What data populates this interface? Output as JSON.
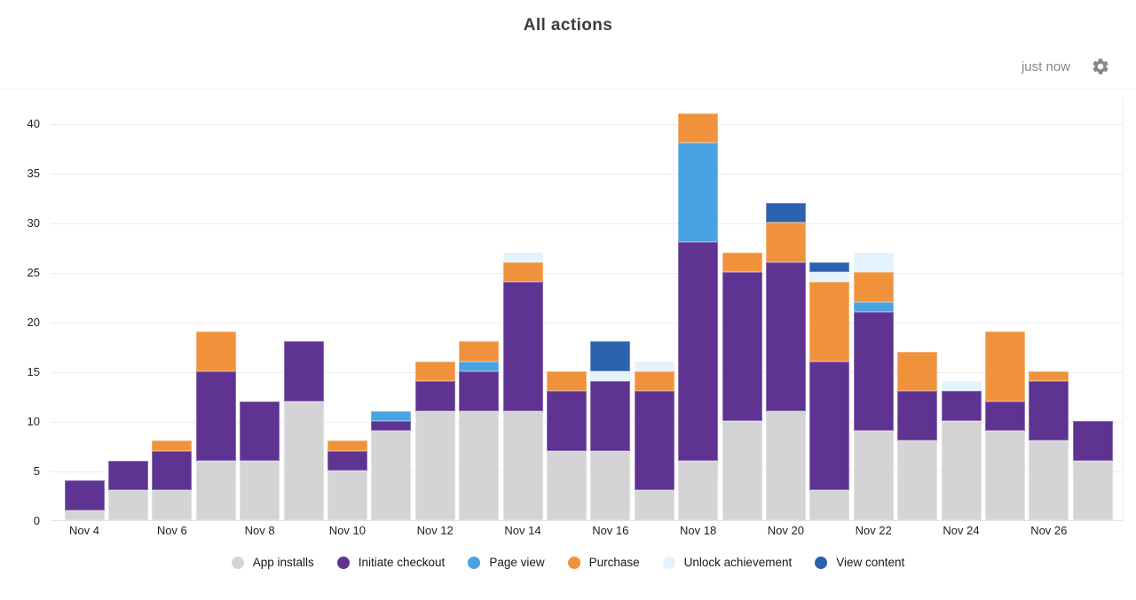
{
  "title": "All actions",
  "header": {
    "updated_label": "just now"
  },
  "colors": {
    "grid": "#ececec",
    "axis": "#dfe3ef",
    "muted_text": "#85898d",
    "dark_text": "#1f1f1f"
  },
  "chart_data": {
    "type": "bar",
    "stacked": true,
    "title": "All actions",
    "xlabel": "",
    "ylabel": "",
    "ylim": [
      0,
      40
    ],
    "y_ticks": [
      0,
      5,
      10,
      15,
      20,
      25,
      30,
      35,
      40
    ],
    "grid": true,
    "legend_position": "bottom",
    "x_tick_labels": [
      "Nov 4",
      "Nov 6",
      "Nov 8",
      "Nov 10",
      "Nov 12",
      "Nov 14",
      "Nov 16",
      "Nov 18",
      "Nov 20",
      "Nov 22",
      "Nov 24",
      "Nov 26"
    ],
    "categories": [
      "Nov 4",
      "Nov 5",
      "Nov 6",
      "Nov 7",
      "Nov 8",
      "Nov 9",
      "Nov 10",
      "Nov 11",
      "Nov 12",
      "Nov 13",
      "Nov 14",
      "Nov 15",
      "Nov 16",
      "Nov 17",
      "Nov 18",
      "Nov 19",
      "Nov 20",
      "Nov 21",
      "Nov 22",
      "Nov 23",
      "Nov 24",
      "Nov 25",
      "Nov 26",
      "Nov 27"
    ],
    "series": [
      {
        "name": "App installs",
        "color": "#d4d4d7",
        "values": [
          1,
          3,
          3,
          6,
          6,
          12,
          5,
          9,
          11,
          11,
          11,
          7,
          7,
          3,
          6,
          10,
          11,
          3,
          9,
          8,
          10,
          9,
          8,
          6
        ]
      },
      {
        "name": "Initiate checkout",
        "color": "#5e3391",
        "values": [
          3,
          3,
          4,
          9,
          6,
          6,
          2,
          1,
          3,
          4,
          13,
          6,
          7,
          10,
          22,
          15,
          15,
          13,
          12,
          5,
          3,
          3,
          6,
          4
        ]
      },
      {
        "name": "Page view",
        "color": "#49a2e1",
        "values": [
          0,
          0,
          0,
          0,
          0,
          0,
          0,
          1,
          0,
          1,
          0,
          0,
          0,
          0,
          10,
          0,
          0,
          0,
          1,
          0,
          0,
          0,
          0,
          0
        ]
      },
      {
        "name": "Purchase",
        "color": "#f0923c",
        "values": [
          0,
          0,
          1,
          4,
          0,
          0,
          1,
          0,
          2,
          2,
          2,
          2,
          0,
          2,
          3,
          2,
          4,
          8,
          3,
          4,
          0,
          7,
          1,
          0
        ]
      },
      {
        "name": "Unlock achievement",
        "color": "#e3f2fc",
        "values": [
          0,
          0,
          0,
          0,
          0,
          0,
          0,
          0,
          0,
          0,
          1,
          0,
          1,
          1,
          0,
          0,
          0,
          1,
          2,
          0,
          1,
          0,
          0,
          0
        ]
      },
      {
        "name": "View content",
        "color": "#2a62ad",
        "values": [
          0,
          0,
          0,
          0,
          0,
          0,
          0,
          0,
          0,
          0,
          0,
          0,
          3,
          0,
          0,
          0,
          2,
          1,
          0,
          0,
          0,
          0,
          0,
          0
        ]
      }
    ],
    "totals": [
      4,
      6,
      8,
      19,
      12,
      18,
      8,
      11,
      16,
      18,
      27,
      15,
      18,
      16,
      41,
      27,
      32,
      26,
      27,
      17,
      14,
      19,
      15,
      10
    ]
  }
}
